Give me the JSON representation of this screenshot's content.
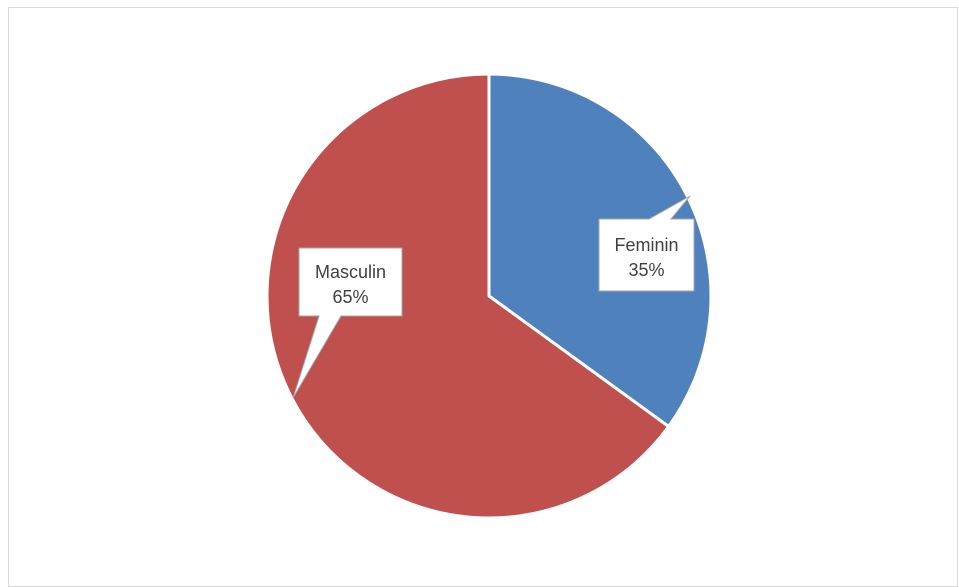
{
  "chart_data": {
    "type": "pie",
    "title": "",
    "slices": [
      {
        "label": "Feminin",
        "value": 35,
        "percent_label": "35%",
        "color": "#4F81BD"
      },
      {
        "label": "Masculin",
        "value": 65,
        "percent_label": "65%",
        "color": "#C0504D"
      }
    ],
    "start_angle": "12 o'clock",
    "direction": "clockwise",
    "data_labels": "callouts with category name and percentage",
    "legend": "none"
  }
}
